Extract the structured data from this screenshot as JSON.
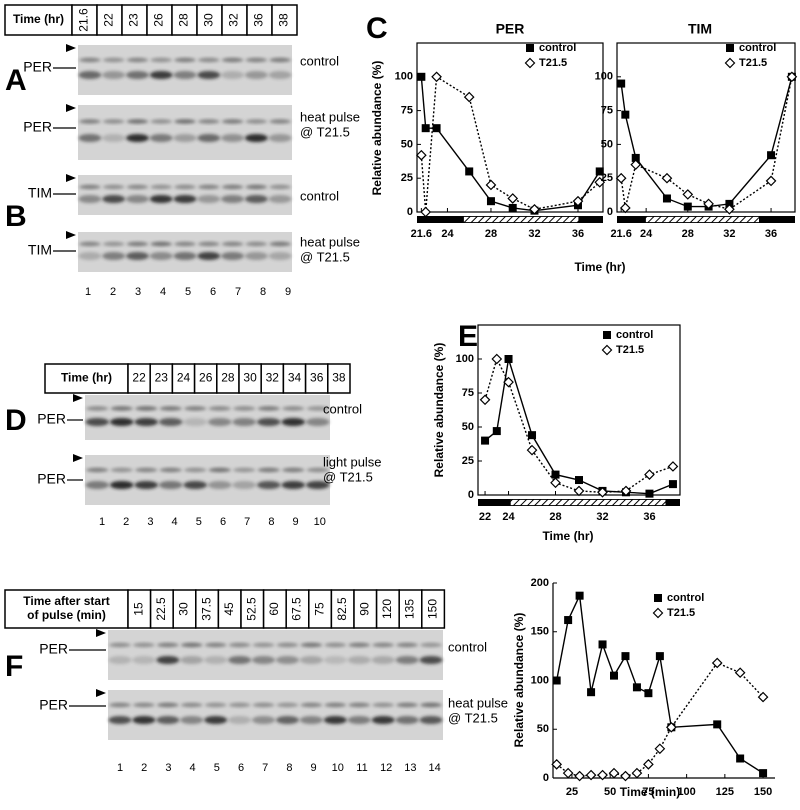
{
  "panel_labels": [
    "A",
    "B",
    "C",
    "D",
    "E",
    "F"
  ],
  "blots": [
    {
      "header": [
        "Time (hr)"
      ],
      "lanes": [
        "21.6",
        "22",
        "23",
        "26",
        "28",
        "30",
        "32",
        "36",
        "38"
      ],
      "rows": [
        {
          "protein": "PER",
          "condition": [
            "control"
          ]
        },
        {
          "protein": "PER",
          "condition": [
            "heat pulse",
            "@ T21.5"
          ]
        },
        {
          "protein": "TIM",
          "condition": [
            "control"
          ]
        },
        {
          "protein": "TIM",
          "condition": [
            "heat pulse",
            "@ T21.5"
          ]
        }
      ],
      "lane_numbers": [
        1,
        2,
        3,
        4,
        5,
        6,
        7,
        8,
        9
      ]
    },
    {
      "header": [
        "Time (hr)"
      ],
      "lanes": [
        "22",
        "23",
        "24",
        "26",
        "28",
        "30",
        "32",
        "34",
        "36",
        "38"
      ],
      "rows": [
        {
          "protein": "PER",
          "condition": [
            "control"
          ]
        },
        {
          "protein": "PER",
          "condition": [
            "light pulse",
            "@ T21.5"
          ]
        }
      ],
      "lane_numbers": [
        1,
        2,
        3,
        4,
        5,
        6,
        7,
        8,
        9,
        10
      ]
    },
    {
      "header": [
        "Time after start",
        "of pulse (min)"
      ],
      "lanes": [
        "15",
        "22.5",
        "30",
        "37.5",
        "45",
        "52.5",
        "60",
        "67.5",
        "75",
        "82.5",
        "90",
        "120",
        "135",
        "150"
      ],
      "rows": [
        {
          "protein": "PER",
          "condition": [
            "control"
          ]
        },
        {
          "protein": "PER",
          "condition": [
            "heat pulse",
            "@ T21.5"
          ]
        }
      ],
      "lane_numbers": [
        1,
        2,
        3,
        4,
        5,
        6,
        7,
        8,
        9,
        10,
        11,
        12,
        13,
        14
      ]
    }
  ],
  "chart_data": [
    {
      "type": "line",
      "title": "PER",
      "y_label": "Relative abundance (%)",
      "x_label": "Time (hr)",
      "x": [
        21.6,
        22,
        23,
        26,
        28,
        30,
        32,
        36,
        38
      ],
      "series": [
        {
          "name": "control",
          "color": "#000000",
          "marker": "square",
          "linestyle": "solid",
          "values": [
            100,
            62,
            62,
            30,
            8,
            3,
            1,
            5,
            30
          ]
        },
        {
          "name": "T21.5",
          "color": "#000000",
          "marker": "diamond",
          "linestyle": "dotted",
          "values": [
            42,
            0,
            100,
            85,
            20,
            10,
            2,
            8,
            22
          ]
        }
      ],
      "xlim": [
        21.2,
        38.3
      ],
      "xticks": [
        21.6,
        24,
        28,
        32,
        36
      ],
      "ylim": [
        0,
        125
      ],
      "yticks": [
        0,
        25,
        50,
        75,
        100
      ],
      "legend": "upper right"
    },
    {
      "type": "line",
      "title": "TIM",
      "x": [
        21.6,
        22,
        23,
        26,
        28,
        30,
        32,
        36,
        38
      ],
      "series": [
        {
          "name": "control",
          "color": "#000000",
          "marker": "square",
          "linestyle": "solid",
          "values": [
            95,
            72,
            40,
            10,
            4,
            4,
            6,
            42,
            100
          ]
        },
        {
          "name": "T21.5",
          "color": "#000000",
          "marker": "diamond",
          "linestyle": "dotted",
          "values": [
            25,
            3,
            35,
            25,
            13,
            6,
            2,
            23,
            100
          ]
        }
      ],
      "xlim": [
        21.2,
        38.3
      ],
      "xticks": [
        21.6,
        24,
        28,
        32,
        36
      ],
      "ylim": [
        0,
        125
      ],
      "yticks": [
        0,
        25,
        50,
        75,
        100
      ],
      "legend": "upper right"
    },
    {
      "type": "line",
      "y_label": "Relative abundance (%)",
      "x_label": "Time (hr)",
      "x": [
        22,
        23,
        24,
        26,
        28,
        30,
        32,
        34,
        36,
        38
      ],
      "series": [
        {
          "name": "control",
          "color": "#000000",
          "marker": "square",
          "linestyle": "solid",
          "values": [
            40,
            47,
            100,
            44,
            15,
            11,
            3,
            2,
            1,
            8
          ]
        },
        {
          "name": "T21.5",
          "color": "#000000",
          "marker": "diamond",
          "linestyle": "dotted",
          "values": [
            70,
            100,
            83,
            33,
            9,
            3,
            2,
            3,
            15,
            21
          ]
        }
      ],
      "xlim": [
        21.4,
        38.6
      ],
      "xticks": [
        22,
        24,
        28,
        32,
        36
      ],
      "ylim": [
        0,
        125
      ],
      "yticks": [
        0,
        25,
        50,
        75,
        100
      ],
      "legend": "upper right"
    },
    {
      "type": "line",
      "y_label": "Relative abundance (%)",
      "x_label": "Time (min)",
      "x": [
        15,
        22.5,
        30,
        37.5,
        45,
        52.5,
        60,
        67.5,
        75,
        82.5,
        90,
        120,
        135,
        150
      ],
      "series": [
        {
          "name": "control",
          "color": "#000000",
          "marker": "square",
          "linestyle": "solid",
          "values": [
            100,
            162,
            187,
            88,
            137,
            105,
            125,
            93,
            87,
            125,
            52,
            55,
            20,
            5
          ]
        },
        {
          "name": "T21.5",
          "color": "#000000",
          "marker": "diamond",
          "linestyle": "dotted",
          "values": [
            14,
            5,
            2,
            3,
            3,
            5,
            2,
            5,
            14,
            30,
            52,
            118,
            108,
            83
          ]
        }
      ],
      "xlim": [
        12.6,
        157.8
      ],
      "xticks": [
        25,
        50,
        75,
        100,
        125,
        150
      ],
      "ylim": [
        0,
        200
      ],
      "yticks": [
        0,
        50,
        100,
        150,
        200
      ],
      "legend": "upper right"
    }
  ]
}
